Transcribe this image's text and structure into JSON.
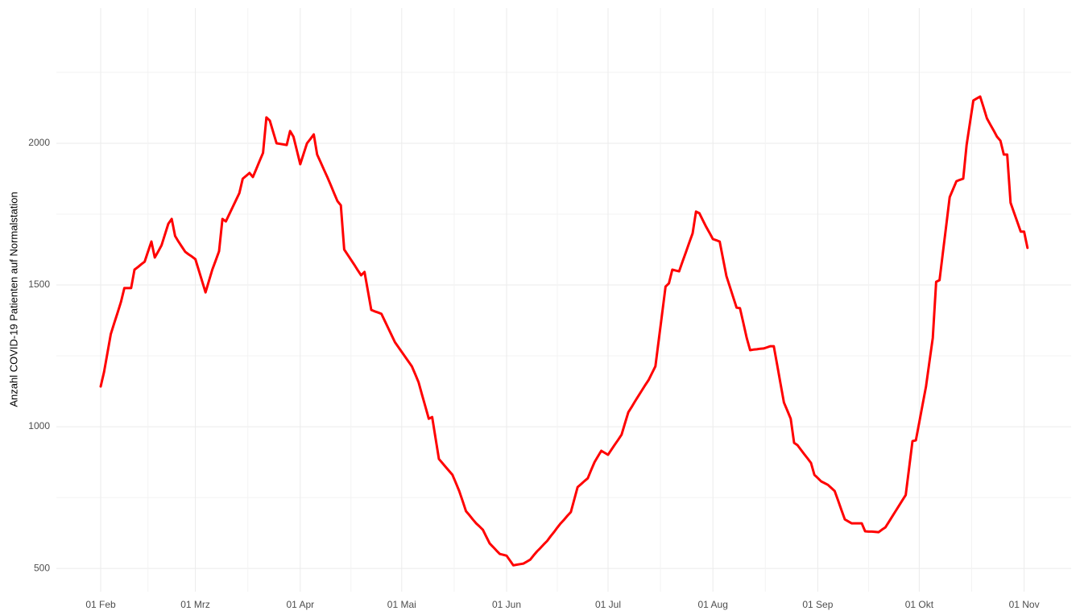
{
  "chart_data": {
    "type": "line",
    "y_label": "Anzahl COVID-19 Patienten auf Normalstation",
    "categories": [
      "01 Feb",
      "02 Feb",
      "03 Feb",
      "04 Feb",
      "05 Feb",
      "06 Feb",
      "07 Feb",
      "08 Feb",
      "09 Feb",
      "10 Feb",
      "11 Feb",
      "12 Feb",
      "13 Feb",
      "14 Feb",
      "15 Feb",
      "16 Feb",
      "17 Feb",
      "18 Feb",
      "19 Feb",
      "20 Feb",
      "21 Feb",
      "22 Feb",
      "23 Feb",
      "24 Feb",
      "25 Feb",
      "26 Feb",
      "27 Feb",
      "28 Feb",
      "01 Mrz",
      "02 Mrz",
      "03 Mrz",
      "04 Mrz",
      "05 Mrz",
      "06 Mrz",
      "07 Mrz",
      "08 Mrz",
      "09 Mrz",
      "10 Mrz",
      "11 Mrz",
      "12 Mrz",
      "13 Mrz",
      "14 Mrz",
      "15 Mrz",
      "16 Mrz",
      "17 Mrz",
      "18 Mrz",
      "19 Mrz",
      "20 Mrz",
      "21 Mrz",
      "22 Mrz",
      "23 Mrz",
      "24 Mrz",
      "25 Mrz",
      "26 Mrz",
      "27 Mrz",
      "28 Mrz",
      "29 Mrz",
      "30 Mrz",
      "31 Mrz",
      "01 Apr",
      "02 Apr",
      "03 Apr",
      "04 Apr",
      "05 Apr",
      "06 Apr",
      "07 Apr",
      "08 Apr",
      "09 Apr",
      "10 Apr",
      "11 Apr",
      "12 Apr",
      "13 Apr",
      "14 Apr",
      "15 Apr",
      "16 Apr",
      "17 Apr",
      "18 Apr",
      "19 Apr",
      "20 Apr",
      "21 Apr",
      "22 Apr",
      "23 Apr",
      "24 Apr",
      "25 Apr",
      "26 Apr",
      "27 Apr",
      "28 Apr",
      "29 Apr",
      "30 Apr",
      "01 Mai",
      "02 Mai",
      "03 Mai",
      "04 Mai",
      "05 Mai",
      "06 Mai",
      "07 Mai",
      "08 Mai",
      "09 Mai",
      "10 Mai",
      "11 Mai",
      "12 Mai",
      "13 Mai",
      "14 Mai",
      "15 Mai",
      "16 Mai",
      "17 Mai",
      "18 Mai",
      "19 Mai",
      "20 Mai",
      "21 Mai",
      "22 Mai",
      "23 Mai",
      "24 Mai",
      "25 Mai",
      "26 Mai",
      "27 Mai",
      "28 Mai",
      "29 Mai",
      "30 Mai",
      "31 Mai",
      "01 Jun",
      "02 Jun",
      "03 Jun",
      "04 Jun",
      "05 Jun",
      "06 Jun",
      "07 Jun",
      "08 Jun",
      "09 Jun",
      "10 Jun",
      "11 Jun",
      "12 Jun",
      "13 Jun",
      "14 Jun",
      "15 Jun",
      "16 Jun",
      "17 Jun",
      "18 Jun",
      "19 Jun",
      "20 Jun",
      "21 Jun",
      "22 Jun",
      "23 Jun",
      "24 Jun",
      "25 Jun",
      "26 Jun",
      "27 Jun",
      "28 Jun",
      "29 Jun",
      "30 Jun",
      "01 Jul",
      "02 Jul",
      "03 Jul",
      "04 Jul",
      "05 Jul",
      "06 Jul",
      "07 Jul",
      "08 Jul",
      "09 Jul",
      "10 Jul",
      "11 Jul",
      "12 Jul",
      "13 Jul",
      "14 Jul",
      "15 Jul",
      "16 Jul",
      "17 Jul",
      "18 Jul",
      "19 Jul",
      "20 Jul",
      "21 Jul",
      "22 Jul",
      "23 Jul",
      "24 Jul",
      "25 Jul",
      "26 Jul",
      "27 Jul",
      "28 Jul",
      "29 Jul",
      "30 Jul",
      "31 Jul",
      "01 Aug",
      "02 Aug",
      "03 Aug",
      "04 Aug",
      "05 Aug",
      "06 Aug",
      "07 Aug",
      "08 Aug",
      "09 Aug",
      "10 Aug",
      "11 Aug",
      "12 Aug",
      "13 Aug",
      "14 Aug",
      "15 Aug",
      "16 Aug",
      "17 Aug",
      "18 Aug",
      "19 Aug",
      "20 Aug",
      "21 Aug",
      "22 Aug",
      "23 Aug",
      "24 Aug",
      "25 Aug",
      "26 Aug",
      "27 Aug",
      "28 Aug",
      "29 Aug",
      "30 Aug",
      "31 Aug",
      "01 Sep",
      "02 Sep",
      "03 Sep",
      "04 Sep",
      "05 Sep",
      "06 Sep",
      "07 Sep",
      "08 Sep",
      "09 Sep",
      "10 Sep",
      "11 Sep",
      "12 Sep",
      "13 Sep",
      "14 Sep",
      "15 Sep",
      "16 Sep",
      "17 Sep",
      "18 Sep",
      "19 Sep",
      "20 Sep",
      "21 Sep",
      "22 Sep",
      "23 Sep",
      "24 Sep",
      "25 Sep",
      "26 Sep",
      "27 Sep",
      "28 Sep",
      "29 Sep",
      "30 Sep",
      "01 Okt",
      "02 Okt",
      "03 Okt",
      "04 Okt",
      "05 Okt",
      "06 Okt",
      "07 Okt",
      "08 Okt",
      "09 Okt",
      "10 Okt",
      "11 Okt",
      "12 Okt",
      "13 Okt",
      "14 Okt",
      "15 Okt",
      "16 Okt",
      "17 Okt",
      "18 Okt",
      "19 Okt",
      "20 Okt",
      "21 Okt",
      "22 Okt",
      "23 Okt",
      "24 Okt",
      "25 Okt",
      "26 Okt",
      "27 Okt",
      "28 Okt",
      "29 Okt",
      "30 Okt",
      "31 Okt",
      "01 Nov",
      "02 Nov"
    ],
    "values": [
      1142,
      1193,
      1260,
      1327,
      1365,
      1402,
      1440,
      1489,
      1489,
      1489,
      1554,
      1563,
      1573,
      1582,
      1618,
      1653,
      1597,
      1618,
      1640,
      1678,
      1716,
      1733,
      1673,
      1653,
      1635,
      1617,
      1608,
      1600,
      1591,
      1552,
      1513,
      1474,
      1514,
      1554,
      1586,
      1619,
      1733,
      1724,
      1749,
      1774,
      1799,
      1824,
      1875,
      1885,
      1895,
      1881,
      1909,
      1938,
      1966,
      2091,
      2080,
      2040,
      2000,
      1998,
      1996,
      1994,
      2043,
      2023,
      1975,
      1926,
      1963,
      2000,
      2015,
      2031,
      1960,
      1934,
      1907,
      1881,
      1853,
      1824,
      1796,
      1781,
      1625,
      1607,
      1589,
      1571,
      1552,
      1534,
      1546,
      1479,
      1412,
      1407,
      1403,
      1398,
      1373,
      1348,
      1323,
      1298,
      1281,
      1264,
      1247,
      1230,
      1213,
      1185,
      1156,
      1113,
      1071,
      1028,
      1034,
      960,
      886,
      872,
      858,
      844,
      830,
      802,
      773,
      738,
      702,
      688,
      673,
      659,
      648,
      636,
      612,
      588,
      576,
      563,
      551,
      548,
      545,
      528,
      511,
      513,
      515,
      517,
      524,
      531,
      546,
      560,
      572,
      585,
      597,
      613,
      628,
      644,
      659,
      672,
      686,
      699,
      743,
      787,
      797,
      808,
      818,
      847,
      875,
      895,
      915,
      908,
      901,
      919,
      937,
      954,
      972,
      1012,
      1051,
      1070,
      1090,
      1109,
      1128,
      1147,
      1165,
      1189,
      1213,
      1307,
      1400,
      1494,
      1506,
      1554,
      1551,
      1548,
      1582,
      1615,
      1649,
      1682,
      1759,
      1753,
      1729,
      1705,
      1684,
      1662,
      1658,
      1653,
      1592,
      1531,
      1494,
      1457,
      1420,
      1418,
      1366,
      1313,
      1270,
      1272,
      1273,
      1275,
      1276,
      1280,
      1284,
      1284,
      1218,
      1151,
      1085,
      1057,
      1028,
      943,
      935,
      919,
      903,
      888,
      872,
      830,
      819,
      807,
      801,
      795,
      784,
      773,
      740,
      706,
      673,
      666,
      659,
      659,
      659,
      659,
      631,
      630,
      630,
      629,
      628,
      637,
      645,
      664,
      683,
      702,
      721,
      740,
      759,
      854,
      949,
      952,
      1015,
      1079,
      1142,
      1228,
      1313,
      1511,
      1517,
      1615,
      1712,
      1810,
      1838,
      1866,
      1871,
      1875,
      1994,
      2073,
      2151,
      2158,
      2165,
      2127,
      2088,
      2066,
      2045,
      2023,
      2009,
      1960,
      1960,
      1790,
      1756,
      1722,
      1688,
      1688,
      1631
    ],
    "color": "#ff0000",
    "xticks": [
      "01 Feb",
      "01 Mrz",
      "01 Apr",
      "01 Mai",
      "01 Jun",
      "01 Jul",
      "01 Aug",
      "01 Sep",
      "01 Okt",
      "01 Nov"
    ],
    "ylim": [
      418,
      2477
    ],
    "yticks": [
      500,
      1000,
      1500,
      2000
    ],
    "grid": true
  }
}
